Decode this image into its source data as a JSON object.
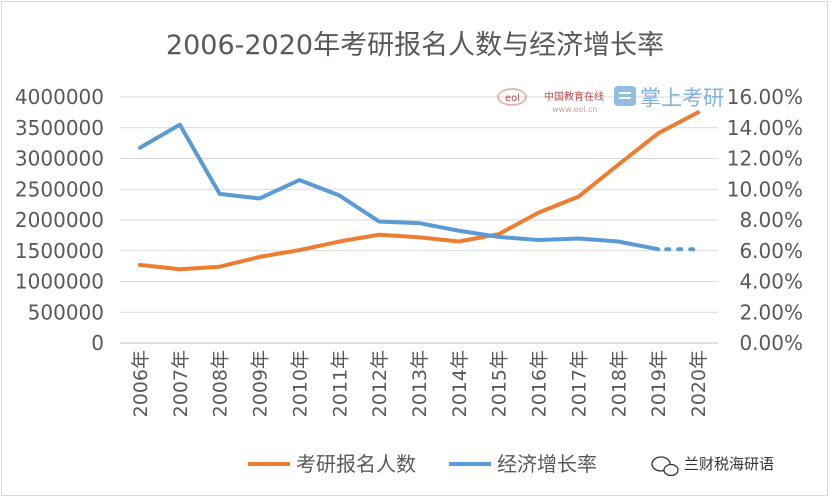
{
  "chart_data": {
    "type": "line",
    "title": "2006-2020年考研报名人数与经济增长率",
    "categories": [
      "2006年",
      "2007年",
      "2008年",
      "2009年",
      "2010年",
      "2011年",
      "2012年",
      "2013年",
      "2014年",
      "2015年",
      "2016年",
      "2017年",
      "2018年",
      "2019年",
      "2020年"
    ],
    "series": [
      {
        "name": "考研报名人数",
        "axis": "left",
        "color": "#ed7d31",
        "values": [
          1270000,
          1200000,
          1240000,
          1400000,
          1510000,
          1650000,
          1760000,
          1720000,
          1650000,
          1770000,
          2120000,
          2380000,
          2900000,
          3410000,
          3750000
        ]
      },
      {
        "name": "经济增长率",
        "axis": "right",
        "color": "#5b9bd5",
        "values": [
          12.7,
          14.2,
          9.7,
          9.4,
          10.6,
          9.6,
          7.9,
          7.8,
          7.3,
          6.9,
          6.7,
          6.8,
          6.6,
          6.1,
          null
        ],
        "dotted_extension": [
          6.1,
          6.1
        ]
      }
    ],
    "y_left": {
      "ylim": [
        0,
        4000000
      ],
      "ticks": [
        "0",
        "500000",
        "1000000",
        "1500000",
        "2000000",
        "2500000",
        "3000000",
        "3500000",
        "4000000"
      ]
    },
    "y_right": {
      "ylim": [
        0,
        16
      ],
      "ticks": [
        "0.00%",
        "2.00%",
        "4.00%",
        "6.00%",
        "8.00%",
        "10.00%",
        "12.00%",
        "14.00%",
        "16.00%"
      ]
    },
    "grid": true,
    "legend_position": "bottom"
  },
  "watermark": {
    "eol_logo": "eol",
    "eol_text": "中国教育在线",
    "eol_url": "www.eol.cn",
    "brand": "掌上考研"
  },
  "source_account": "兰财税海研语"
}
